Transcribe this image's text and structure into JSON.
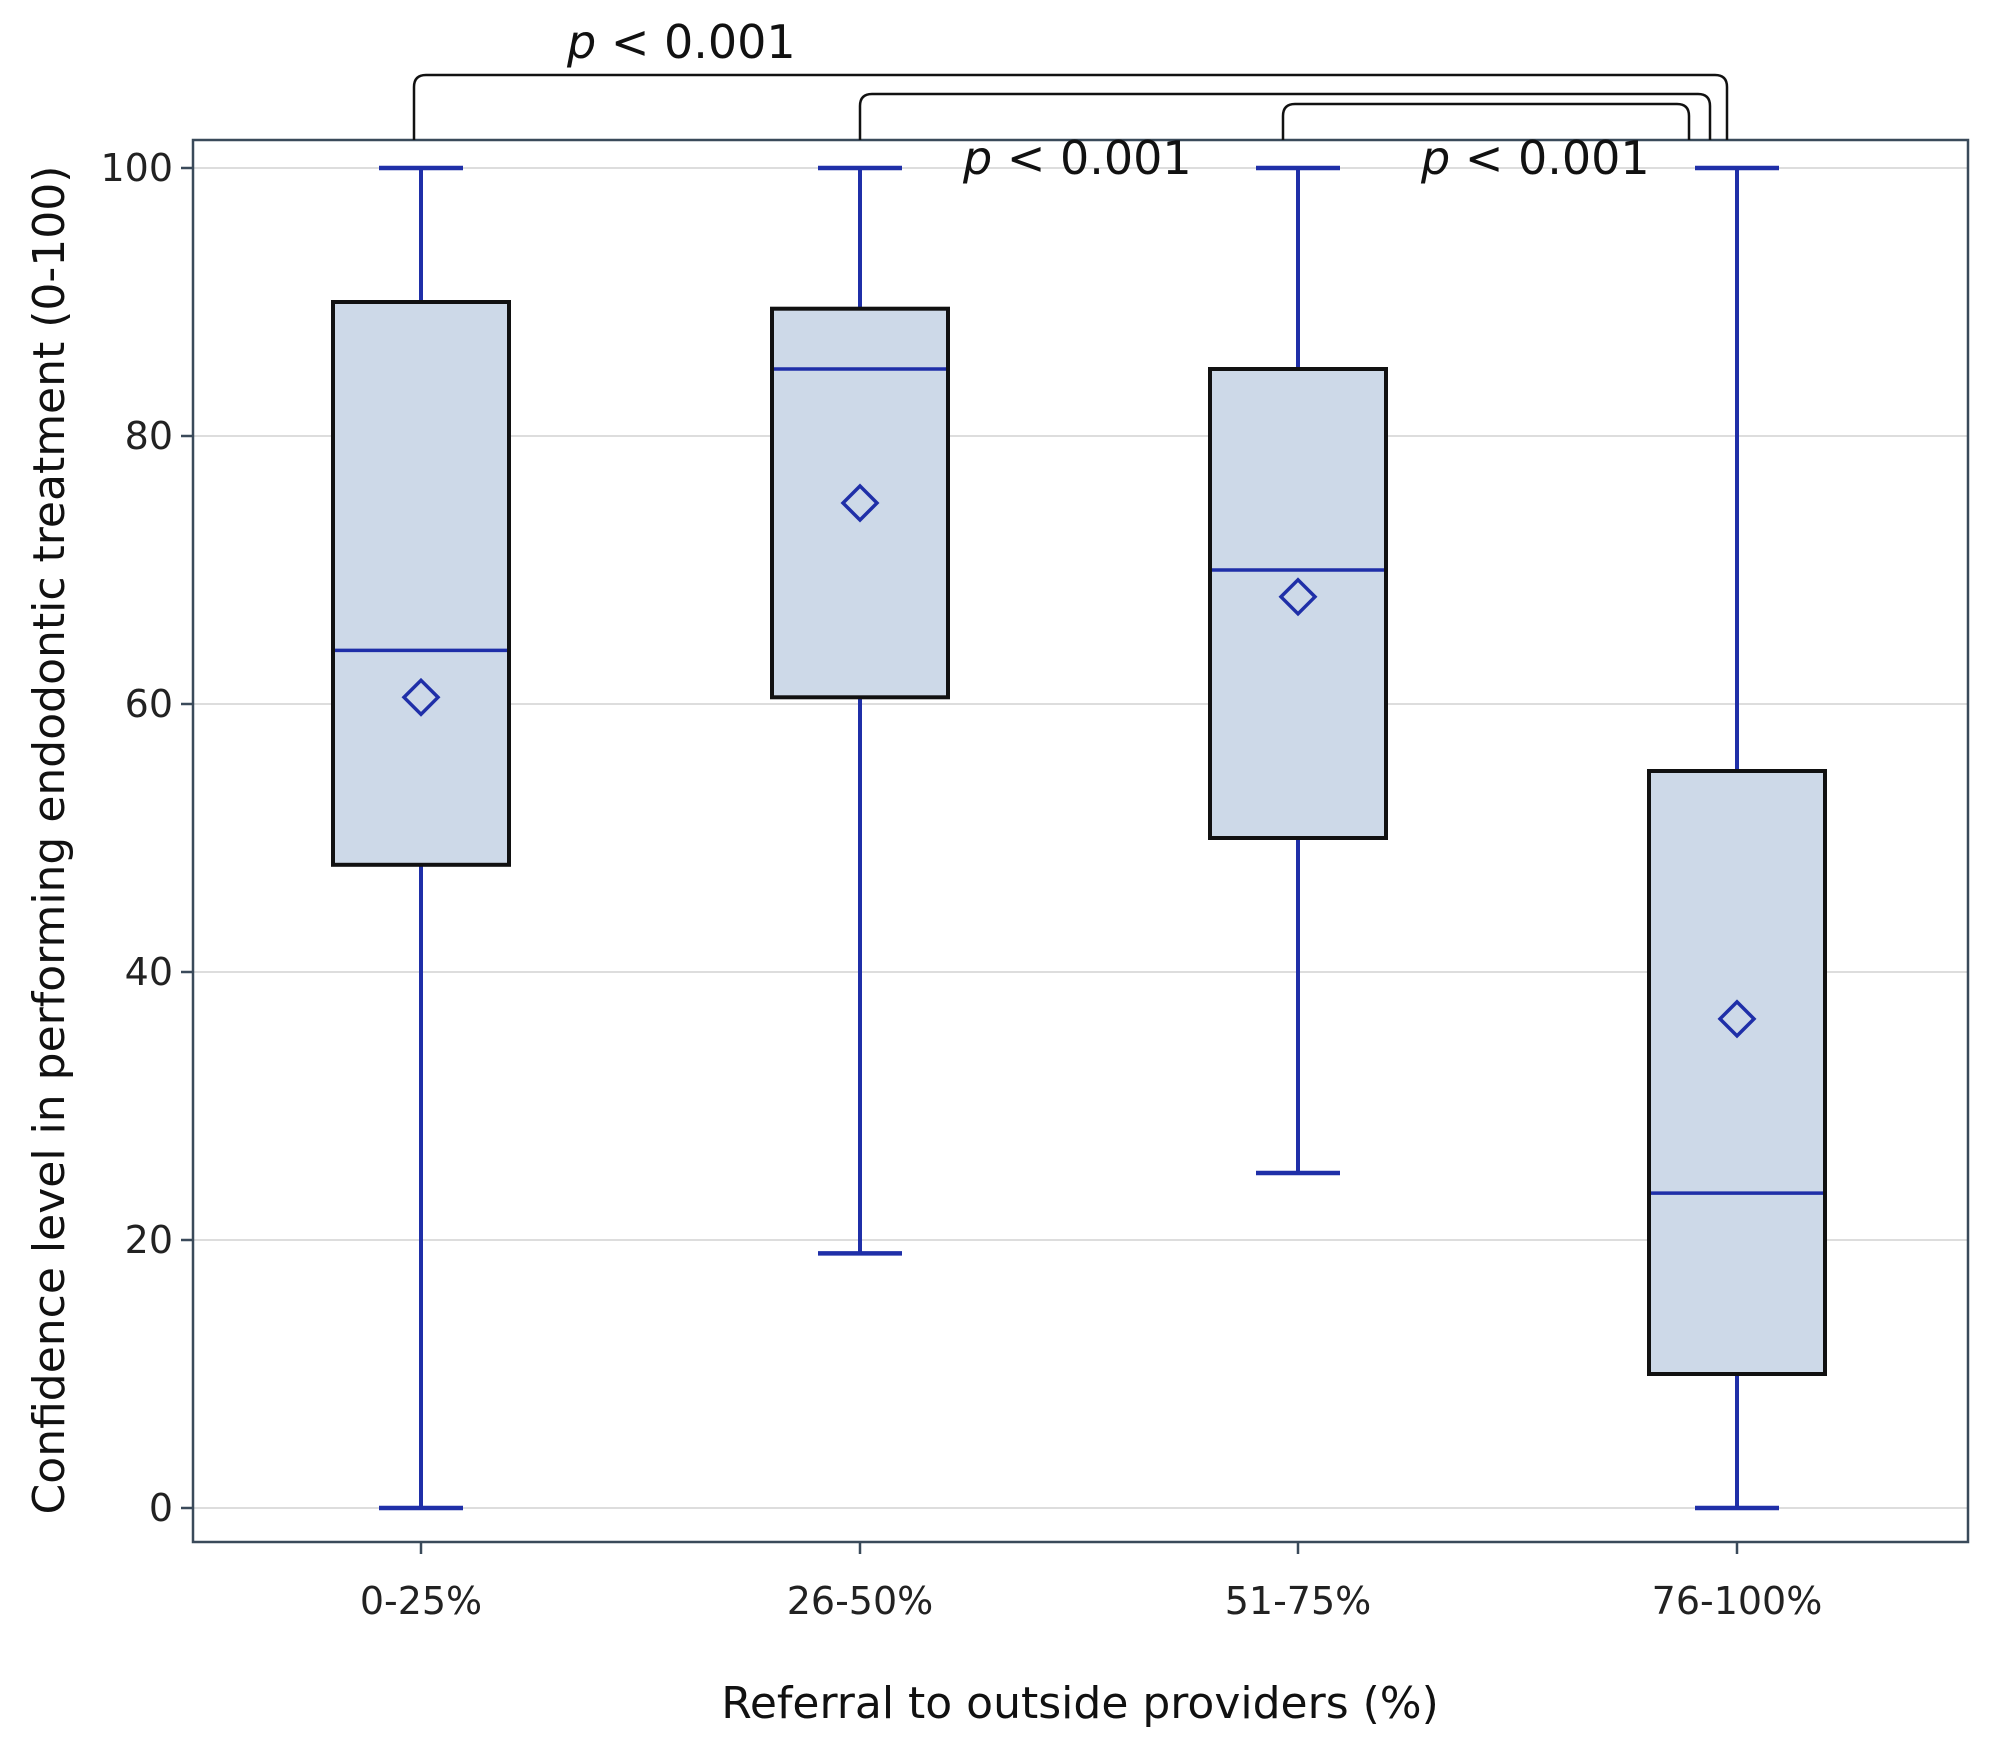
{
  "chart_data": {
    "type": "box",
    "xlabel": "Referral to outside providers (%)",
    "ylabel": "Confidence level in performing endodontic treatment (0-100)",
    "ylim": [
      0,
      100
    ],
    "yticks": [
      0,
      20,
      40,
      60,
      80,
      100
    ],
    "grid": true,
    "categories": [
      "0-25%",
      "26-50%",
      "51-75%",
      "76-100%"
    ],
    "boxes": [
      {
        "category": "0-25%",
        "min": 0,
        "q1": 48,
        "median": 64,
        "q3": 90,
        "max": 100,
        "mean": 60.5
      },
      {
        "category": "26-50%",
        "min": 19,
        "q1": 60.5,
        "median": 85,
        "q3": 89.5,
        "max": 100,
        "mean": 75
      },
      {
        "category": "51-75%",
        "min": 25,
        "q1": 50,
        "median": 70,
        "q3": 85,
        "max": 100,
        "mean": 68
      },
      {
        "category": "76-100%",
        "min": 0,
        "q1": 10,
        "median": 23.5,
        "q3": 55,
        "max": 100,
        "mean": 36.5
      }
    ],
    "annotations": [
      {
        "from": "0-25%",
        "to": "76-100%",
        "p_symbol": "p",
        "p_text": " < 0.001"
      },
      {
        "from": "26-50%",
        "to": "76-100%",
        "p_symbol": "p",
        "p_text": " < 0.001"
      },
      {
        "from": "51-75%",
        "to": "76-100%",
        "p_symbol": "p",
        "p_text": " < 0.001"
      }
    ],
    "colors": {
      "box_fill": "#cdd9e8",
      "box_edge": "#111111",
      "whisker": "#1f2fa8",
      "median": "#1f2fa8",
      "mean_marker": "#1f2fa8",
      "grid": "#dddddd",
      "frame": "#3a4a5a"
    }
  }
}
